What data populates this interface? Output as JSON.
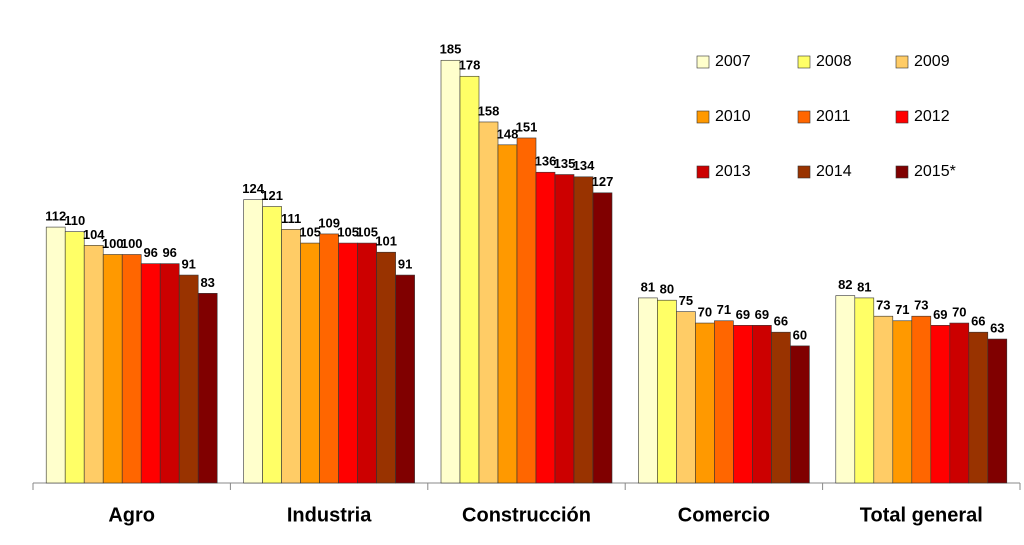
{
  "chart_data": {
    "type": "bar",
    "categories": [
      "Agro",
      "Industria",
      "Construcción",
      "Comercio",
      "Total general"
    ],
    "series": [
      {
        "name": "2007",
        "color": "#FFFFCC",
        "values": [
          112,
          124,
          185,
          81,
          82
        ]
      },
      {
        "name": "2008",
        "color": "#FFFF66",
        "values": [
          110,
          121,
          178,
          80,
          81
        ]
      },
      {
        "name": "2009",
        "color": "#FFCC66",
        "values": [
          104,
          111,
          158,
          75,
          73
        ]
      },
      {
        "name": "2010",
        "color": "#FF9900",
        "values": [
          100,
          105,
          148,
          70,
          71
        ]
      },
      {
        "name": "2011",
        "color": "#FF6600",
        "values": [
          100,
          109,
          151,
          71,
          73
        ]
      },
      {
        "name": "2012",
        "color": "#FF0000",
        "values": [
          96,
          105,
          136,
          69,
          69
        ]
      },
      {
        "name": "2013",
        "color": "#CC0000",
        "values": [
          96,
          105,
          135,
          69,
          70
        ]
      },
      {
        "name": "2014",
        "color": "#993300",
        "values": [
          91,
          101,
          134,
          66,
          66
        ]
      },
      {
        "name": "2015*",
        "color": "#800000",
        "values": [
          83,
          91,
          127,
          60,
          63
        ]
      }
    ],
    "ylim": [
      0,
      200
    ]
  }
}
